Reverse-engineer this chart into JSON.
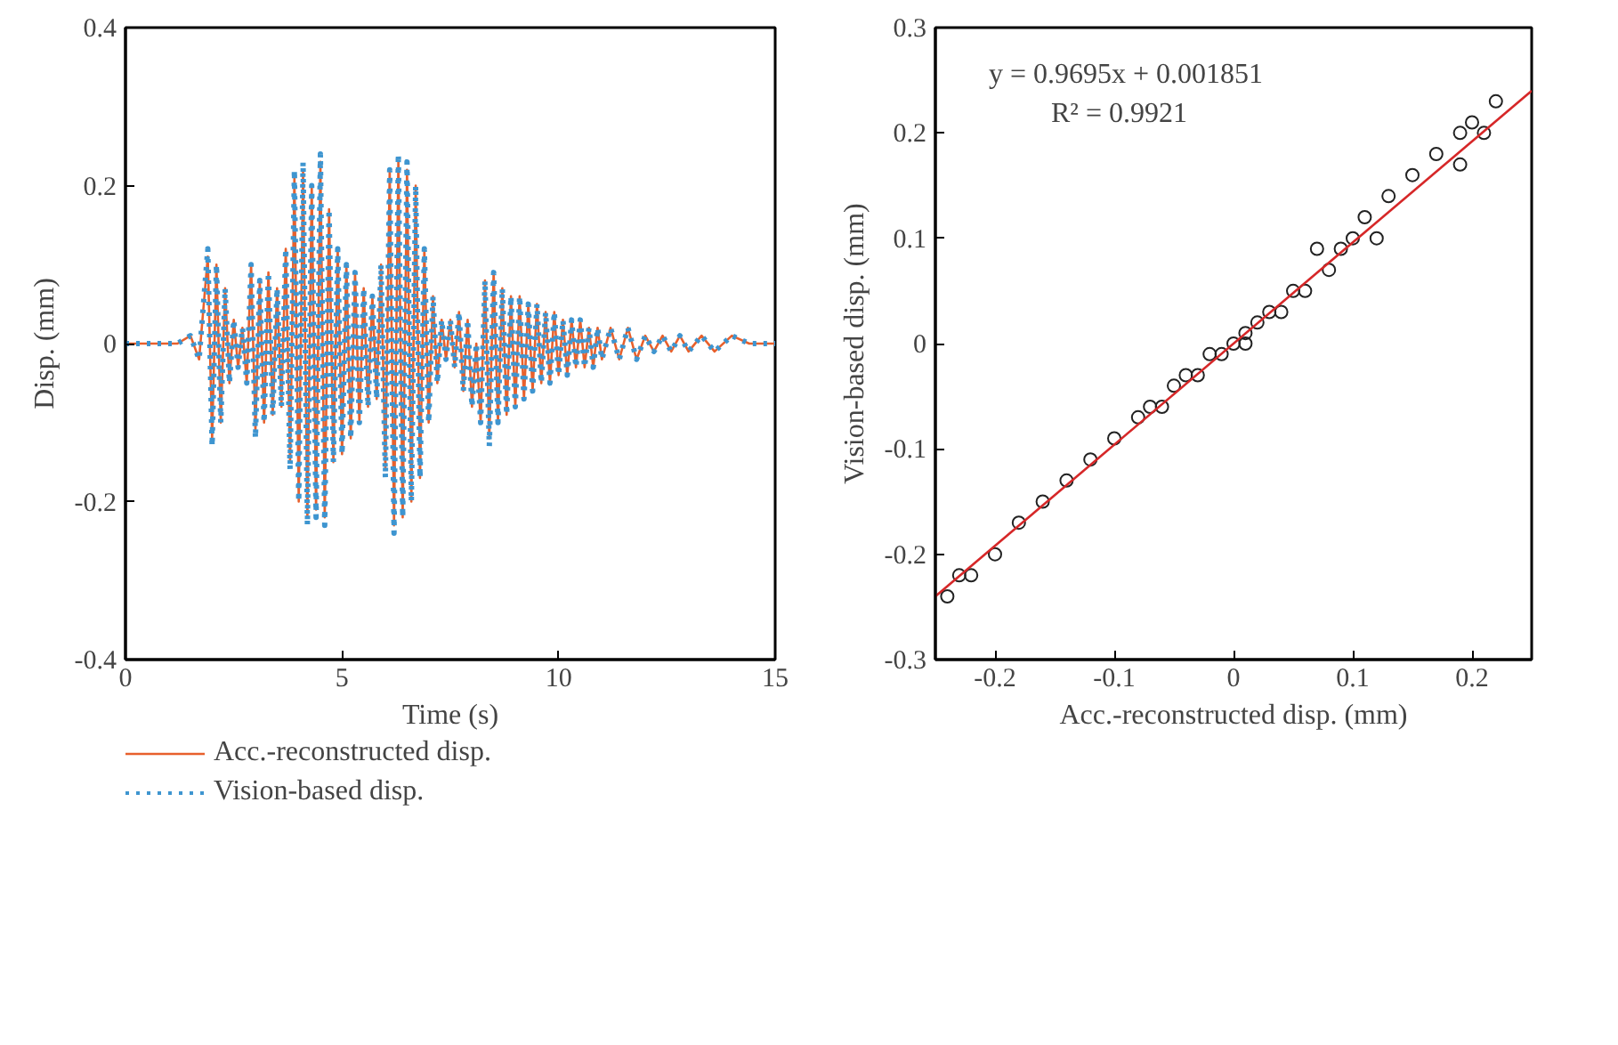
{
  "chart_data": [
    {
      "type": "line",
      "xlabel": "Time (s)",
      "ylabel": "Disp. (mm)",
      "xlim": [
        0,
        15
      ],
      "xticks": [
        0,
        5,
        10,
        15
      ],
      "ylim": [
        -0.4,
        0.4
      ],
      "yticks": [
        -0.4,
        -0.2,
        0,
        0.2,
        0.4
      ],
      "grid": false,
      "legend": "bottom",
      "x": [
        0,
        1.2,
        1.5,
        1.7,
        1.9,
        2.0,
        2.1,
        2.2,
        2.3,
        2.4,
        2.5,
        2.6,
        2.7,
        2.8,
        2.9,
        3.0,
        3.1,
        3.2,
        3.3,
        3.4,
        3.5,
        3.6,
        3.7,
        3.8,
        3.9,
        4.0,
        4.1,
        4.2,
        4.3,
        4.4,
        4.5,
        4.6,
        4.7,
        4.8,
        4.9,
        5.0,
        5.1,
        5.2,
        5.3,
        5.4,
        5.5,
        5.6,
        5.7,
        5.8,
        5.9,
        6.0,
        6.1,
        6.2,
        6.3,
        6.4,
        6.5,
        6.6,
        6.7,
        6.8,
        6.9,
        7.0,
        7.1,
        7.2,
        7.3,
        7.4,
        7.5,
        7.6,
        7.7,
        7.8,
        7.9,
        8.0,
        8.1,
        8.2,
        8.3,
        8.4,
        8.5,
        8.6,
        8.7,
        8.8,
        8.9,
        9.0,
        9.1,
        9.2,
        9.3,
        9.4,
        9.5,
        9.6,
        9.7,
        9.8,
        9.9,
        10.0,
        10.1,
        10.2,
        10.3,
        10.4,
        10.5,
        10.6,
        10.7,
        10.8,
        10.9,
        11.0,
        11.2,
        11.4,
        11.6,
        11.8,
        12.0,
        12.2,
        12.4,
        12.6,
        12.8,
        13.0,
        13.3,
        13.6,
        14.0,
        14.4,
        15
      ],
      "series": [
        {
          "name": "Acc.-reconstructed disp.",
          "color": "#e8602c",
          "line_style": "solid",
          "values": [
            0,
            0,
            0.01,
            -0.02,
            0.11,
            -0.12,
            0.1,
            -0.1,
            0.07,
            -0.05,
            0.03,
            -0.03,
            0.02,
            -0.05,
            0.1,
            -0.11,
            0.08,
            -0.1,
            0.09,
            -0.09,
            0.07,
            -0.08,
            0.12,
            -0.15,
            0.21,
            -0.2,
            0.22,
            -0.22,
            0.2,
            -0.21,
            0.23,
            -0.22,
            0.17,
            -0.15,
            0.12,
            -0.14,
            0.1,
            -0.12,
            0.09,
            -0.1,
            0.07,
            -0.08,
            0.06,
            -0.07,
            0.1,
            -0.16,
            0.22,
            -0.23,
            0.23,
            -0.22,
            0.22,
            -0.2,
            0.2,
            -0.17,
            0.12,
            -0.1,
            0.06,
            -0.05,
            0.03,
            -0.02,
            0.03,
            -0.03,
            0.04,
            -0.06,
            0.03,
            -0.08,
            0.0,
            -0.1,
            0.08,
            -0.12,
            0.09,
            -0.1,
            0.07,
            -0.09,
            0.06,
            -0.08,
            0.06,
            -0.07,
            0.05,
            -0.06,
            0.05,
            -0.05,
            0.04,
            -0.05,
            0.04,
            -0.04,
            0.03,
            -0.04,
            0.03,
            -0.03,
            0.03,
            -0.03,
            0.02,
            -0.03,
            0.02,
            -0.02,
            0.02,
            -0.02,
            0.02,
            -0.02,
            0.01,
            -0.01,
            0.01,
            -0.01,
            0.01,
            -0.01,
            0.01,
            -0.01,
            0.01,
            0,
            0
          ]
        },
        {
          "name": "Vision-based disp.",
          "color": "#3e95d0",
          "line_style": "dotted",
          "values": [
            0,
            0,
            0.01,
            -0.02,
            0.12,
            -0.13,
            0.1,
            -0.1,
            0.07,
            -0.05,
            0.03,
            -0.03,
            0.02,
            -0.05,
            0.1,
            -0.12,
            0.08,
            -0.1,
            0.09,
            -0.09,
            0.07,
            -0.08,
            0.12,
            -0.16,
            0.22,
            -0.2,
            0.23,
            -0.23,
            0.2,
            -0.22,
            0.24,
            -0.23,
            0.17,
            -0.15,
            0.12,
            -0.14,
            0.1,
            -0.12,
            0.09,
            -0.1,
            0.07,
            -0.08,
            0.06,
            -0.07,
            0.1,
            -0.17,
            0.22,
            -0.24,
            0.24,
            -0.22,
            0.23,
            -0.2,
            0.2,
            -0.17,
            0.12,
            -0.1,
            0.06,
            -0.05,
            0.03,
            -0.02,
            0.03,
            -0.03,
            0.04,
            -0.06,
            0.03,
            -0.08,
            0.0,
            -0.1,
            0.08,
            -0.13,
            0.09,
            -0.1,
            0.07,
            -0.09,
            0.06,
            -0.08,
            0.06,
            -0.07,
            0.05,
            -0.06,
            0.05,
            -0.05,
            0.04,
            -0.05,
            0.04,
            -0.04,
            0.03,
            -0.04,
            0.03,
            -0.03,
            0.03,
            -0.03,
            0.02,
            -0.03,
            0.02,
            -0.02,
            0.02,
            -0.02,
            0.02,
            -0.02,
            0.01,
            -0.01,
            0.01,
            -0.01,
            0.01,
            -0.01,
            0.01,
            -0.01,
            0.01,
            0,
            0
          ]
        }
      ]
    },
    {
      "type": "scatter",
      "xlabel": "Acc.-reconstructed disp. (mm)",
      "ylabel": "Vision-based disp. (mm)",
      "xlim": [
        -0.25,
        0.25
      ],
      "xticks": [
        -0.2,
        -0.1,
        0,
        0.1,
        0.2
      ],
      "ylim": [
        -0.3,
        0.3
      ],
      "yticks": [
        -0.3,
        -0.2,
        -0.1,
        0,
        0.1,
        0.2,
        0.3
      ],
      "grid": false,
      "legend": false,
      "annotations": [
        "y = 0.9695x + 0.001851",
        "R² = 0.9921"
      ],
      "series": [
        {
          "type": "scatter",
          "marker": "circle",
          "color": "#222222",
          "x": [
            -0.24,
            -0.23,
            -0.22,
            -0.2,
            -0.18,
            -0.16,
            -0.14,
            -0.12,
            -0.1,
            -0.08,
            -0.07,
            -0.06,
            -0.05,
            -0.04,
            -0.03,
            -0.02,
            -0.01,
            0,
            0.01,
            0.01,
            0.02,
            0.03,
            0.04,
            0.05,
            0.06,
            0.07,
            0.08,
            0.09,
            0.1,
            0.12,
            0.11,
            0.13,
            0.15,
            0.17,
            0.19,
            0.2,
            0.22,
            0.19,
            0.21
          ],
          "values": [
            -0.24,
            -0.22,
            -0.22,
            -0.2,
            -0.17,
            -0.15,
            -0.13,
            -0.11,
            -0.09,
            -0.07,
            -0.06,
            -0.06,
            -0.04,
            -0.03,
            -0.03,
            -0.01,
            -0.01,
            0,
            0.01,
            0,
            0.02,
            0.03,
            0.03,
            0.05,
            0.05,
            0.09,
            0.07,
            0.09,
            0.1,
            0.1,
            0.12,
            0.14,
            0.16,
            0.18,
            0.2,
            0.21,
            0.23,
            0.17,
            0.2
          ]
        },
        {
          "type": "line",
          "color": "#d62728",
          "line_style": "solid",
          "x": [
            -0.25,
            0.25
          ],
          "values": [
            -0.24,
            0.24
          ]
        }
      ]
    }
  ]
}
